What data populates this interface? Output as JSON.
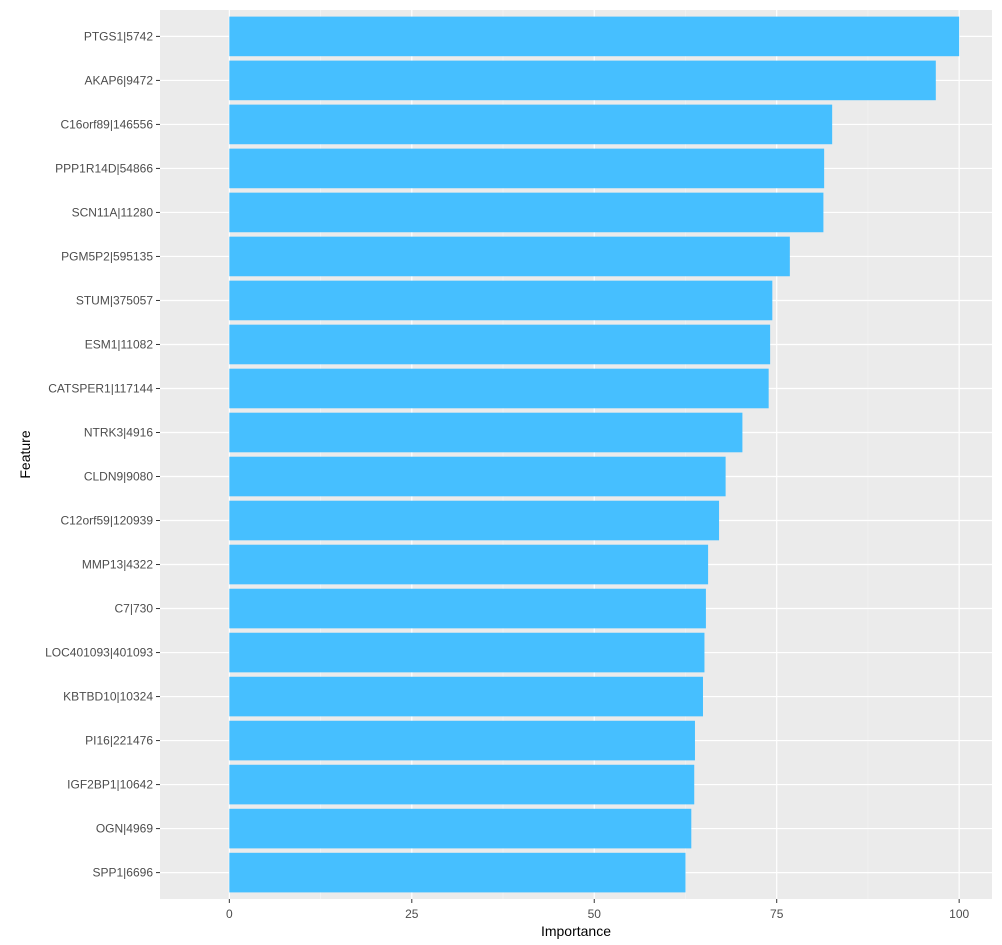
{
  "chart_data": {
    "type": "bar",
    "orientation": "horizontal",
    "xlabel": "Importance",
    "ylabel": "Feature",
    "xlim": [
      -9.5,
      104.5
    ],
    "xticks": [
      0,
      25,
      50,
      75,
      100
    ],
    "grid": true,
    "colors": {
      "bar": "#46BFFF",
      "panel": "#EBEBEB",
      "grid_major": "#FFFFFF",
      "grid_minor": "#F5F5F5"
    },
    "categories": [
      "PTGS1|5742",
      "AKAP6|9472",
      "C16orf89|146556",
      "PPP1R14D|54866",
      "SCN11A|11280",
      "PGM5P2|595135",
      "STUM|375057",
      "ESM1|11082",
      "CATSPER1|117144",
      "NTRK3|4916",
      "CLDN9|9080",
      "C12orf59|120939",
      "MMP13|4322",
      "C7|730",
      "LOC401093|401093",
      "KBTBD10|10324",
      "PI16|221476",
      "IGF2BP1|10642",
      "OGN|4969",
      "SPP1|6696"
    ],
    "values": [
      100,
      96.8,
      82.6,
      81.5,
      81.4,
      76.8,
      74.4,
      74.1,
      73.9,
      70.3,
      68.0,
      67.1,
      65.6,
      65.3,
      65.1,
      64.9,
      63.8,
      63.7,
      63.3,
      62.5
    ]
  }
}
